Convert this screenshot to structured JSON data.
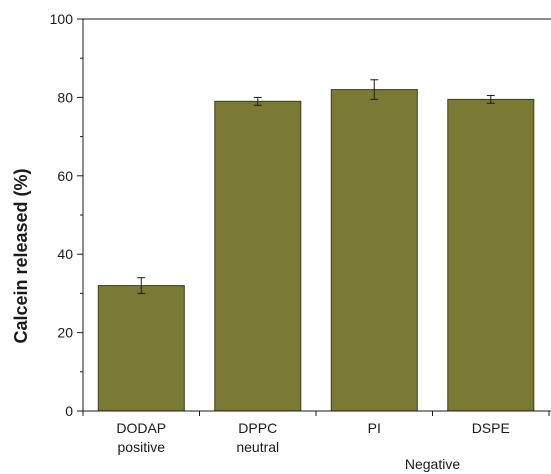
{
  "chart_data": {
    "type": "bar",
    "title": "",
    "xlabel": "",
    "ylabel": "Calcein released (%)",
    "ylim": [
      0,
      100
    ],
    "yticks": [
      0,
      20,
      40,
      60,
      80,
      100
    ],
    "grid": false,
    "categories": [
      "DODAP",
      "DPPC",
      "PI",
      "DSPE"
    ],
    "sublabels": [
      "positive",
      "neutral",
      "",
      ""
    ],
    "group_labels": [
      {
        "label": "Negative",
        "categories": [
          "PI",
          "DSPE"
        ]
      }
    ],
    "values": [
      32,
      79,
      82,
      79.5
    ],
    "errors": [
      2,
      1,
      2.5,
      1
    ],
    "bar_color": "#7a7a35",
    "bar_edge_color": "#3d3d18"
  }
}
